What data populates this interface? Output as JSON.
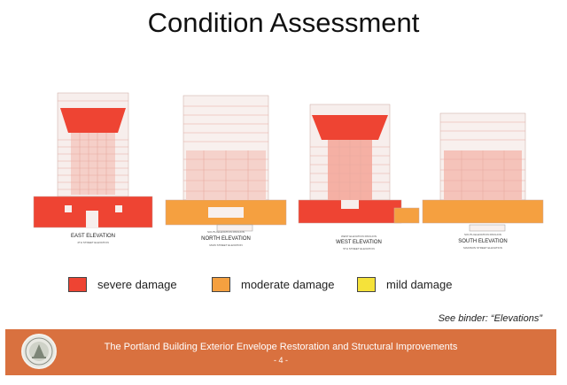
{
  "slide": {
    "title": "Condition Assessment",
    "binder_note": "See binder:  “Elevations”",
    "footer_title": "The Portland Building Exterior Envelope Restoration and Structural Improvements",
    "page_number": "- 4 -"
  },
  "elevations": [
    {
      "label": "EAST ELEVATION",
      "sublabel": "4TH STREET ELEVATION"
    },
    {
      "label": "NORTH ELEVATION",
      "sublabel": "MAIN STREET ELEVATION",
      "callout": "SOUTH ELEVATION PAVILION"
    },
    {
      "label": "WEST ELEVATION",
      "sublabel": "5TH STREET ELEVATION",
      "callout": "WEST ELEVATION PAVILION"
    },
    {
      "label": "SOUTH ELEVATION",
      "sublabel": "MADISON STREET ELEVATION",
      "callout": "SOUTH ELEVATION PAVILION"
    }
  ],
  "legend": [
    {
      "label": "severe damage",
      "color": "#ee4433"
    },
    {
      "label": "moderate damage",
      "color": "#f5a040"
    },
    {
      "label": "mild damage",
      "color": "#f5e23a"
    }
  ],
  "icons": {
    "seal": "city-seal-icon"
  }
}
